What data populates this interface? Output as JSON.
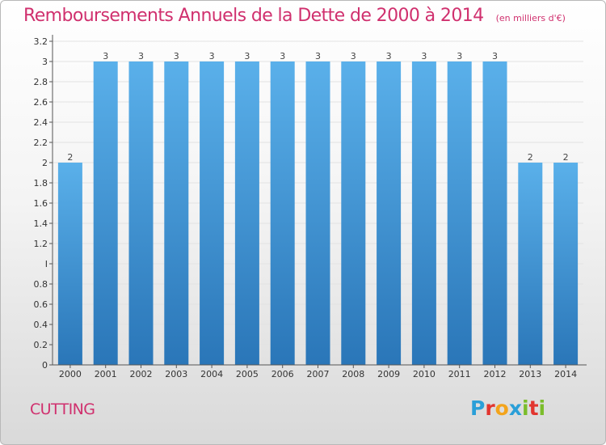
{
  "header": {
    "title": "Remboursements Annuels de la Dette de 2000 à 2014",
    "subtitle": "(en milliers d'€)"
  },
  "commune": "CUTTING",
  "logo": {
    "text": "Proxiti",
    "letters": [
      {
        "char": "P",
        "color": "#2a9fd8"
      },
      {
        "char": "r",
        "color": "#e2352f"
      },
      {
        "char": "o",
        "color": "#f3a41c"
      },
      {
        "char": "x",
        "color": "#2a9fd8"
      },
      {
        "char": "i",
        "color": "#7bbd2b"
      },
      {
        "char": "t",
        "color": "#e2352f"
      },
      {
        "char": "i",
        "color": "#7bbd2b"
      }
    ]
  },
  "colors": {
    "bar_top": "#5ab0ea",
    "bar_bottom": "#2a76b8",
    "title": "#d0306e",
    "axis": "#555555",
    "grid": "#e2e2e2"
  },
  "chart_data": {
    "type": "bar",
    "categories": [
      "2000",
      "2001",
      "2002",
      "2003",
      "2004",
      "2005",
      "2006",
      "2007",
      "2008",
      "2009",
      "2010",
      "2011",
      "2012",
      "2013",
      "2014"
    ],
    "values": [
      2,
      3,
      3,
      3,
      3,
      3,
      3,
      3,
      3,
      3,
      3,
      3,
      3,
      2,
      2
    ],
    "data_labels": [
      "2",
      "3",
      "3",
      "3",
      "3",
      "3",
      "3",
      "3",
      "3",
      "3",
      "3",
      "3",
      "3",
      "2",
      "2"
    ],
    "ylim": [
      0,
      3.2
    ],
    "y_ticks": [
      0,
      0.2,
      0.4,
      0.6,
      0.8,
      1,
      1.2,
      1.4,
      1.6,
      1.8,
      2,
      2.2,
      2.4,
      2.6,
      2.8,
      3,
      3.2
    ],
    "y_tick_labels": [
      "0",
      "0.2",
      "0.4",
      "0.6",
      "0.8",
      "I",
      "1.2",
      "1.4",
      "1.6",
      "1.8",
      "2",
      "2.2",
      "2.4",
      "2.6",
      "2.8",
      "3",
      "3.2"
    ],
    "grid": true,
    "xlabel": "",
    "ylabel": ""
  }
}
